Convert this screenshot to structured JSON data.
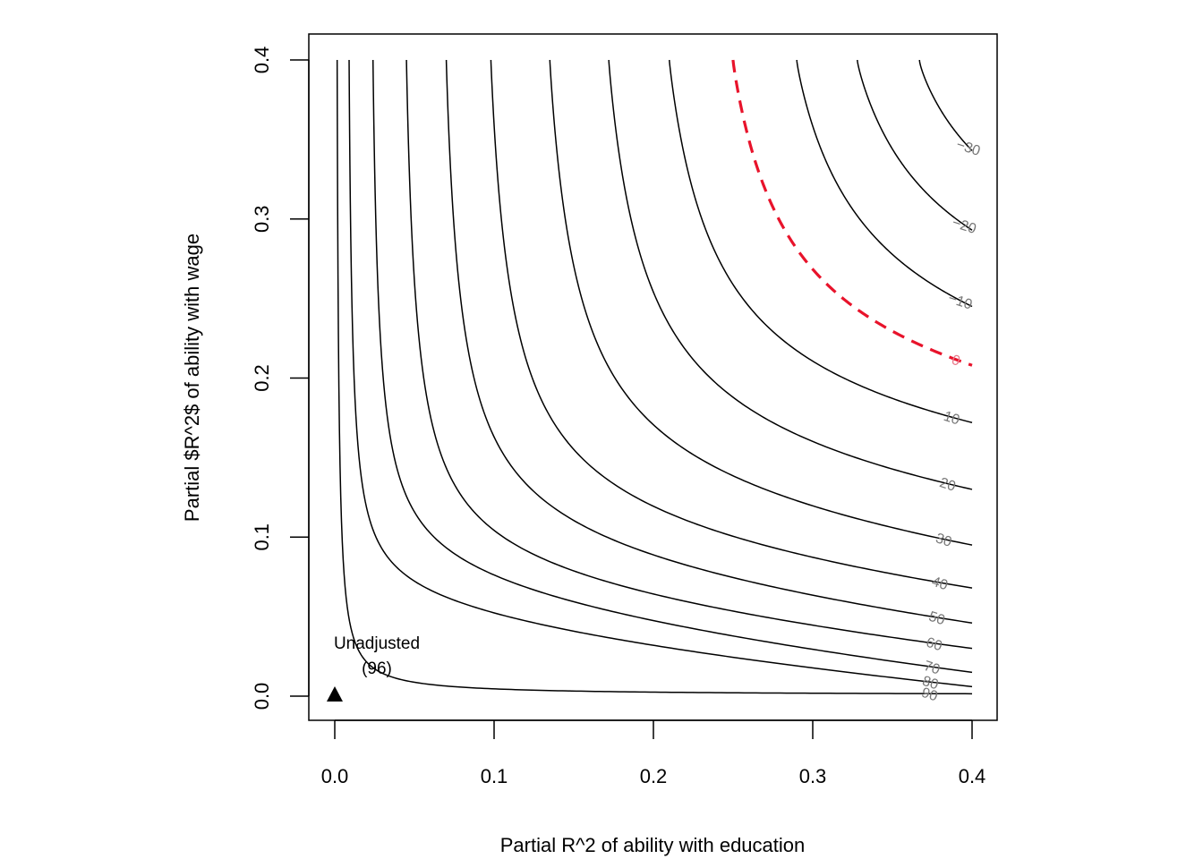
{
  "chart_data": {
    "type": "contour",
    "xlabel": "Partial R^2 of ability with education",
    "ylabel": "Partial $R^2$ of ability with wage",
    "xlim": [
      0,
      0.4
    ],
    "ylim": [
      0,
      0.4
    ],
    "x_ticks": [
      {
        "value": 0.0,
        "label": "0.0"
      },
      {
        "value": 0.1,
        "label": "0.1"
      },
      {
        "value": 0.2,
        "label": "0.2"
      },
      {
        "value": 0.3,
        "label": "0.3"
      },
      {
        "value": 0.4,
        "label": "0.4"
      }
    ],
    "y_ticks": [
      {
        "value": 0.0,
        "label": "0.0"
      },
      {
        "value": 0.1,
        "label": "0.1"
      },
      {
        "value": 0.2,
        "label": "0.2"
      },
      {
        "value": 0.3,
        "label": "0.3"
      },
      {
        "value": 0.4,
        "label": "0.4"
      }
    ],
    "unadjusted_estimate": 96,
    "contours": [
      {
        "level": 90,
        "label": "90"
      },
      {
        "level": 80,
        "label": "80"
      },
      {
        "level": 70,
        "label": "70"
      },
      {
        "level": 60,
        "label": "60"
      },
      {
        "level": 50,
        "label": "50"
      },
      {
        "level": 40,
        "label": "40"
      },
      {
        "level": 30,
        "label": "30"
      },
      {
        "level": 20,
        "label": "20"
      },
      {
        "level": 10,
        "label": "10"
      },
      {
        "level": 0,
        "label": "0",
        "color": "#e8132b",
        "dashed": true
      },
      {
        "level": -10,
        "label": "−10"
      },
      {
        "level": -20,
        "label": "−20"
      },
      {
        "level": -30,
        "label": "−30"
      }
    ],
    "point": {
      "x": 0.0,
      "y": 0.0,
      "label_line1": "Unadjusted",
      "label_line2": "(96)"
    },
    "colors": {
      "line": "#000000",
      "label": "#777777",
      "zero_line": "#e8132b",
      "zero_label": "#e8798a"
    }
  }
}
